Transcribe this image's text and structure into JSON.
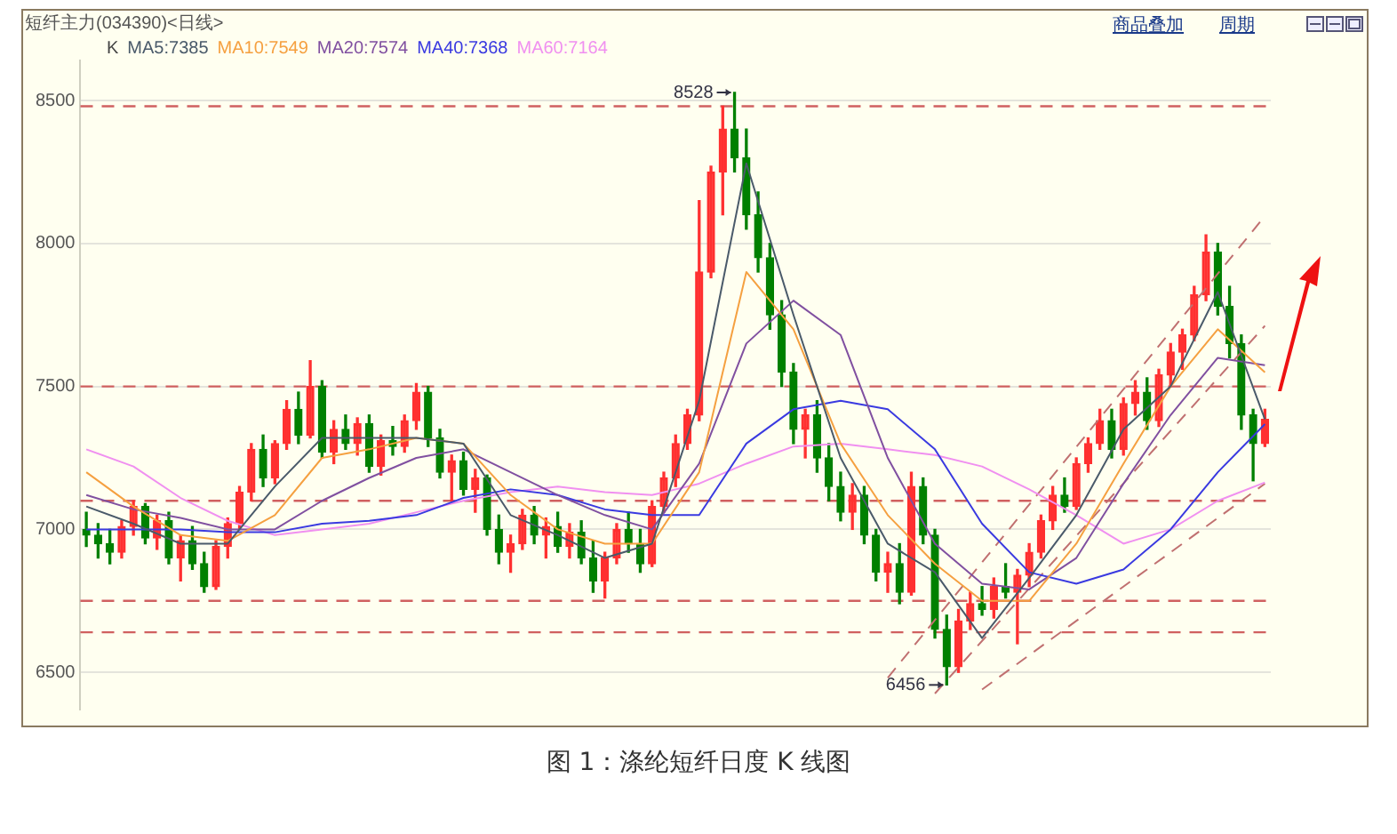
{
  "chart_data": {
    "type": "candlestick",
    "title": "图 1：涤纶短纤日度 K 线图",
    "subtitle": "短纤主力(034390)<日线>",
    "categories": [
      null,
      null,
      null,
      null,
      null,
      null,
      null,
      null,
      null,
      null,
      null,
      null,
      null,
      null,
      null,
      null,
      null,
      null,
      null,
      null,
      null,
      null,
      null,
      null,
      null,
      null,
      null,
      null,
      null,
      null,
      null,
      null,
      null,
      null,
      null,
      null,
      null,
      null,
      null,
      null,
      null,
      null,
      null,
      null,
      null,
      null,
      null,
      null,
      null,
      null,
      null,
      null,
      null,
      null,
      null,
      null,
      null,
      null,
      null,
      null,
      null,
      null,
      null,
      null,
      null,
      null,
      null,
      null,
      null,
      null,
      null,
      null,
      null,
      null,
      null,
      null,
      null,
      null,
      null,
      null,
      null,
      null,
      null,
      null,
      null,
      null,
      null,
      null,
      null,
      null,
      null,
      null,
      null,
      null,
      null,
      null,
      null,
      null,
      null,
      null,
      null
    ],
    "ohlc": [
      [
        7000,
        7060,
        6940,
        6980
      ],
      [
        6980,
        7020,
        6900,
        6950
      ],
      [
        6950,
        7000,
        6880,
        6920
      ],
      [
        6920,
        7030,
        6900,
        7010
      ],
      [
        7010,
        7100,
        6980,
        7080
      ],
      [
        7080,
        7090,
        6950,
        6970
      ],
      [
        6970,
        7050,
        6930,
        7030
      ],
      [
        7030,
        7060,
        6880,
        6900
      ],
      [
        6900,
        6980,
        6820,
        6960
      ],
      [
        6960,
        7010,
        6860,
        6880
      ],
      [
        6880,
        6920,
        6780,
        6800
      ],
      [
        6800,
        6960,
        6790,
        6940
      ],
      [
        6940,
        7040,
        6900,
        7020
      ],
      [
        7020,
        7150,
        7000,
        7130
      ],
      [
        7130,
        7300,
        7100,
        7280
      ],
      [
        7280,
        7330,
        7150,
        7180
      ],
      [
        7180,
        7310,
        7160,
        7300
      ],
      [
        7300,
        7450,
        7280,
        7420
      ],
      [
        7420,
        7480,
        7300,
        7330
      ],
      [
        7330,
        7590,
        7320,
        7500
      ],
      [
        7500,
        7520,
        7250,
        7270
      ],
      [
        7270,
        7380,
        7230,
        7350
      ],
      [
        7350,
        7400,
        7280,
        7300
      ],
      [
        7300,
        7390,
        7260,
        7370
      ],
      [
        7370,
        7400,
        7200,
        7220
      ],
      [
        7220,
        7330,
        7190,
        7310
      ],
      [
        7310,
        7360,
        7260,
        7290
      ],
      [
        7290,
        7400,
        7270,
        7380
      ],
      [
        7380,
        7510,
        7350,
        7480
      ],
      [
        7480,
        7500,
        7290,
        7320
      ],
      [
        7320,
        7350,
        7180,
        7200
      ],
      [
        7200,
        7260,
        7100,
        7240
      ],
      [
        7240,
        7270,
        7120,
        7140
      ],
      [
        7140,
        7210,
        7060,
        7180
      ],
      [
        7180,
        7190,
        6980,
        7000
      ],
      [
        7000,
        7050,
        6880,
        6920
      ],
      [
        6920,
        6980,
        6850,
        6950
      ],
      [
        6950,
        7070,
        6930,
        7050
      ],
      [
        7050,
        7080,
        6950,
        6980
      ],
      [
        6980,
        7040,
        6900,
        7010
      ],
      [
        7010,
        7060,
        6920,
        6940
      ],
      [
        6940,
        7020,
        6900,
        6990
      ],
      [
        6990,
        7030,
        6880,
        6900
      ],
      [
        6900,
        6960,
        6780,
        6820
      ],
      [
        6820,
        6920,
        6760,
        6900
      ],
      [
        6900,
        7020,
        6880,
        7000
      ],
      [
        7000,
        7060,
        6920,
        6950
      ],
      [
        6950,
        7000,
        6850,
        6880
      ],
      [
        6880,
        7100,
        6870,
        7080
      ],
      [
        7080,
        7200,
        7060,
        7180
      ],
      [
        7180,
        7330,
        7150,
        7300
      ],
      [
        7300,
        7420,
        7280,
        7400
      ],
      [
        7400,
        8150,
        7380,
        7900
      ],
      [
        7900,
        8270,
        7880,
        8250
      ],
      [
        8250,
        8480,
        8100,
        8400
      ],
      [
        8400,
        8528,
        8250,
        8300
      ],
      [
        8300,
        8400,
        8050,
        8100
      ],
      [
        8100,
        8180,
        7900,
        7950
      ],
      [
        7950,
        8000,
        7700,
        7750
      ],
      [
        7750,
        7800,
        7500,
        7550
      ],
      [
        7550,
        7580,
        7300,
        7350
      ],
      [
        7350,
        7420,
        7250,
        7400
      ],
      [
        7400,
        7450,
        7200,
        7250
      ],
      [
        7250,
        7300,
        7100,
        7150
      ],
      [
        7150,
        7200,
        7030,
        7060
      ],
      [
        7060,
        7160,
        7000,
        7120
      ],
      [
        7120,
        7150,
        6950,
        6980
      ],
      [
        6980,
        7000,
        6820,
        6850
      ],
      [
        6850,
        6920,
        6780,
        6880
      ],
      [
        6880,
        6950,
        6740,
        6780
      ],
      [
        6780,
        7200,
        6770,
        7150
      ],
      [
        7150,
        7180,
        6950,
        6980
      ],
      [
        6980,
        7000,
        6620,
        6650
      ],
      [
        6650,
        6700,
        6456,
        6520
      ],
      [
        6520,
        6720,
        6500,
        6680
      ],
      [
        6680,
        6780,
        6650,
        6740
      ],
      [
        6740,
        6800,
        6700,
        6720
      ],
      [
        6720,
        6830,
        6690,
        6800
      ],
      [
        6800,
        6880,
        6760,
        6780
      ],
      [
        6780,
        6860,
        6600,
        6840
      ],
      [
        6840,
        6950,
        6800,
        6920
      ],
      [
        6920,
        7050,
        6900,
        7030
      ],
      [
        7030,
        7150,
        7000,
        7120
      ],
      [
        7120,
        7180,
        7060,
        7080
      ],
      [
        7080,
        7250,
        7070,
        7230
      ],
      [
        7230,
        7320,
        7200,
        7300
      ],
      [
        7300,
        7420,
        7280,
        7380
      ],
      [
        7380,
        7420,
        7250,
        7280
      ],
      [
        7280,
        7460,
        7260,
        7440
      ],
      [
        7440,
        7520,
        7400,
        7480
      ],
      [
        7480,
        7530,
        7350,
        7380
      ],
      [
        7380,
        7560,
        7360,
        7540
      ],
      [
        7540,
        7650,
        7500,
        7620
      ],
      [
        7620,
        7700,
        7560,
        7680
      ],
      [
        7680,
        7850,
        7660,
        7820
      ],
      [
        7820,
        8030,
        7800,
        7970
      ],
      [
        7970,
        8000,
        7750,
        7780
      ],
      [
        7780,
        7850,
        7600,
        7650
      ],
      [
        7650,
        7680,
        7350,
        7400
      ],
      [
        7400,
        7420,
        7170,
        7300
      ],
      [
        7300,
        7420,
        7290,
        7385
      ]
    ],
    "colors": [
      "#008000",
      "#008000",
      "#008000",
      "#ff3030",
      "#ff3030",
      "#008000",
      "#ff3030",
      "#008000",
      "#ff3030",
      "#008000",
      "#008000",
      "#ff3030",
      "#ff3030",
      "#ff3030",
      "#ff3030",
      "#008000",
      "#ff3030",
      "#ff3030",
      "#008000",
      "#ff3030",
      "#008000",
      "#ff3030",
      "#008000",
      "#ff3030",
      "#008000",
      "#ff3030",
      "#008000",
      "#ff3030",
      "#ff3030",
      "#008000",
      "#008000",
      "#ff3030",
      "#008000",
      "#ff3030",
      "#008000",
      "#008000",
      "#ff3030",
      "#ff3030",
      "#008000",
      "#ff3030",
      "#008000",
      "#ff3030",
      "#008000",
      "#008000",
      "#ff3030",
      "#ff3030",
      "#008000",
      "#008000",
      "#ff3030",
      "#ff3030",
      "#ff3030",
      "#ff3030",
      "#ff3030",
      "#ff3030",
      "#ff3030",
      "#008000",
      "#008000",
      "#008000",
      "#008000",
      "#008000",
      "#008000",
      "#ff3030",
      "#008000",
      "#008000",
      "#008000",
      "#ff3030",
      "#008000",
      "#008000",
      "#ff3030",
      "#008000",
      "#ff3030",
      "#008000",
      "#008000",
      "#008000",
      "#ff3030",
      "#ff3030",
      "#008000",
      "#ff3030",
      "#008000",
      "#ff3030",
      "#ff3030",
      "#ff3030",
      "#ff3030",
      "#008000",
      "#ff3030",
      "#ff3030",
      "#ff3030",
      "#008000",
      "#ff3030",
      "#ff3030",
      "#008000",
      "#ff3030",
      "#ff3030",
      "#ff3030",
      "#ff3030",
      "#ff3030",
      "#008000",
      "#008000",
      "#008000",
      "#008000",
      "#ff3030"
    ],
    "series": [
      {
        "type": "line",
        "name": "MA5:7385",
        "color": "#4a5a6a",
        "values": [
          7080,
          null,
          null,
          null,
          7020,
          null,
          null,
          null,
          6950,
          null,
          null,
          null,
          6950,
          null,
          null,
          null,
          7150,
          null,
          null,
          null,
          7320,
          null,
          null,
          null,
          7320,
          null,
          null,
          null,
          7320,
          null,
          null,
          null,
          7300,
          null,
          null,
          null,
          7050,
          null,
          null,
          null,
          6980,
          null,
          null,
          null,
          6900,
          null,
          null,
          null,
          6950,
          null,
          null,
          null,
          7450,
          null,
          null,
          null,
          8280,
          null,
          null,
          null,
          7750,
          null,
          null,
          null,
          7250,
          null,
          null,
          null,
          6950,
          null,
          null,
          null,
          6850,
          null,
          null,
          null,
          6620,
          null,
          null,
          null,
          6830,
          null,
          null,
          null,
          7050,
          null,
          null,
          null,
          7350,
          null,
          null,
          null,
          7500,
          null,
          null,
          null,
          7830,
          null,
          null,
          null,
          7385
        ]
      },
      {
        "type": "line",
        "name": "MA10:7549",
        "color": "#f5a040",
        "values": [
          7200,
          null,
          null,
          null,
          7080,
          null,
          null,
          null,
          6980,
          null,
          null,
          null,
          6960,
          null,
          null,
          null,
          7050,
          null,
          null,
          null,
          7250,
          null,
          null,
          null,
          7280,
          null,
          null,
          null,
          7320,
          null,
          null,
          null,
          7300,
          null,
          null,
          null,
          7120,
          null,
          null,
          null,
          7000,
          null,
          null,
          null,
          6950,
          null,
          null,
          null,
          6950,
          null,
          null,
          null,
          7200,
          null,
          null,
          null,
          7900,
          null,
          null,
          null,
          7700,
          null,
          null,
          null,
          7300,
          null,
          null,
          null,
          7050,
          null,
          null,
          null,
          6880,
          null,
          null,
          null,
          6750,
          null,
          null,
          null,
          6750,
          null,
          null,
          null,
          6950,
          null,
          null,
          null,
          7230,
          null,
          null,
          null,
          7500,
          null,
          null,
          null,
          7700,
          null,
          null,
          null,
          7549
        ]
      },
      {
        "type": "line",
        "name": "MA20:7574",
        "color": "#8050a0",
        "values": [
          7120,
          null,
          null,
          null,
          7070,
          null,
          null,
          null,
          7040,
          null,
          null,
          null,
          7000,
          null,
          null,
          null,
          7000,
          null,
          null,
          null,
          7100,
          null,
          null,
          null,
          7180,
          null,
          null,
          null,
          7250,
          null,
          null,
          null,
          7280,
          null,
          null,
          null,
          7200,
          null,
          null,
          null,
          7120,
          null,
          null,
          null,
          7050,
          null,
          null,
          null,
          7000,
          null,
          null,
          null,
          7230,
          null,
          null,
          null,
          7650,
          null,
          null,
          null,
          7800,
          null,
          null,
          null,
          7680,
          null,
          null,
          null,
          7250,
          null,
          null,
          null,
          6950,
          null,
          null,
          null,
          6810,
          null,
          null,
          null,
          6790,
          null,
          null,
          null,
          6900,
          null,
          null,
          null,
          7160,
          null,
          null,
          null,
          7400,
          null,
          null,
          null,
          7600,
          null,
          null,
          null,
          7574
        ]
      },
      {
        "type": "line",
        "name": "MA40:7368",
        "color": "#3a3ae0",
        "values": [
          7000,
          null,
          null,
          null,
          7000,
          null,
          null,
          null,
          7000,
          null,
          null,
          null,
          6990,
          null,
          null,
          null,
          6990,
          null,
          null,
          null,
          7020,
          null,
          null,
          null,
          7030,
          null,
          null,
          null,
          7050,
          null,
          null,
          null,
          7110,
          null,
          null,
          null,
          7140,
          null,
          null,
          null,
          7120,
          null,
          null,
          null,
          7070,
          null,
          null,
          null,
          7050,
          null,
          null,
          null,
          7050,
          null,
          null,
          null,
          7300,
          null,
          null,
          null,
          7420,
          null,
          null,
          null,
          7450,
          null,
          null,
          null,
          7420,
          null,
          null,
          null,
          7280,
          null,
          null,
          null,
          7020,
          null,
          null,
          null,
          6850,
          null,
          null,
          null,
          6810,
          null,
          null,
          null,
          6860,
          null,
          null,
          null,
          7000,
          null,
          null,
          null,
          7200,
          null,
          null,
          null,
          7368
        ]
      },
      {
        "type": "line",
        "name": "MA60:7164",
        "color": "#f090f0",
        "values": [
          7280,
          null,
          null,
          null,
          7220,
          null,
          null,
          null,
          7110,
          null,
          null,
          null,
          7030,
          null,
          null,
          null,
          6980,
          null,
          null,
          null,
          7000,
          null,
          null,
          null,
          7020,
          null,
          null,
          null,
          7060,
          null,
          null,
          null,
          7100,
          null,
          null,
          null,
          7130,
          null,
          null,
          null,
          7150,
          null,
          null,
          null,
          7130,
          null,
          null,
          null,
          7120,
          null,
          null,
          null,
          7160,
          null,
          null,
          null,
          7230,
          null,
          null,
          null,
          7290,
          null,
          null,
          null,
          7300,
          null,
          null,
          null,
          7280,
          null,
          null,
          null,
          7260,
          null,
          null,
          null,
          7220,
          null,
          null,
          null,
          7140,
          null,
          null,
          null,
          7050,
          null,
          null,
          null,
          6950,
          null,
          null,
          null,
          7000,
          null,
          null,
          null,
          7100,
          null,
          null,
          null,
          7164
        ]
      },
      {
        "type": "line",
        "color": "#c07070",
        "line_style": "dashed",
        "values": [
          null,
          null,
          null,
          null,
          null,
          null,
          null,
          null,
          null,
          null,
          null,
          null,
          null,
          null,
          null,
          null,
          null,
          null,
          null,
          null,
          null,
          null,
          null,
          null,
          null,
          null,
          null,
          null,
          null,
          null,
          null,
          null,
          null,
          null,
          null,
          null,
          null,
          null,
          null,
          null,
          null,
          null,
          null,
          null,
          null,
          null,
          null,
          null,
          null,
          null,
          null,
          null,
          null,
          null,
          null,
          null,
          null,
          null,
          null,
          null,
          null,
          null,
          null,
          null,
          null,
          null,
          null,
          null,
          6481,
          null,
          null,
          null,
          null,
          null,
          null,
          null,
          null,
          null,
          null,
          null,
          null,
          null,
          null,
          null,
          null,
          null,
          null,
          null,
          null,
          null,
          null,
          null,
          null,
          null,
          null,
          null,
          null,
          null,
          null,
          null,
          8096
        ]
      },
      {
        "type": "line",
        "color": "#c07070",
        "line_style": "dashed",
        "values": [
          null,
          null,
          null,
          null,
          null,
          null,
          null,
          null,
          null,
          null,
          null,
          null,
          null,
          null,
          null,
          null,
          null,
          null,
          null,
          null,
          null,
          null,
          null,
          null,
          null,
          null,
          null,
          null,
          null,
          null,
          null,
          null,
          null,
          null,
          null,
          null,
          null,
          null,
          null,
          null,
          null,
          null,
          null,
          null,
          null,
          null,
          null,
          null,
          null,
          null,
          null,
          null,
          null,
          null,
          null,
          null,
          null,
          null,
          null,
          null,
          null,
          null,
          null,
          null,
          null,
          null,
          null,
          null,
          null,
          null,
          null,
          null,
          6426,
          null,
          null,
          null,
          null,
          null,
          null,
          null,
          null,
          null,
          null,
          null,
          null,
          null,
          null,
          null,
          null,
          null,
          null,
          null,
          null,
          null,
          null,
          null,
          null,
          null,
          null,
          null,
          7712
        ]
      },
      {
        "type": "line",
        "color": "#c07070",
        "line_style": "dashed",
        "values": [
          null,
          null,
          null,
          null,
          null,
          null,
          null,
          null,
          null,
          null,
          null,
          null,
          null,
          null,
          null,
          null,
          null,
          null,
          null,
          null,
          null,
          null,
          null,
          null,
          null,
          null,
          null,
          null,
          null,
          null,
          null,
          null,
          null,
          null,
          null,
          null,
          null,
          null,
          null,
          null,
          null,
          null,
          null,
          null,
          null,
          null,
          null,
          null,
          null,
          null,
          null,
          null,
          null,
          null,
          null,
          null,
          null,
          null,
          null,
          null,
          null,
          null,
          null,
          null,
          null,
          null,
          null,
          null,
          null,
          null,
          null,
          null,
          null,
          null,
          null,
          null,
          6440,
          null,
          null,
          null,
          null,
          null,
          null,
          null,
          null,
          null,
          null,
          null,
          null,
          null,
          null,
          null,
          null,
          null,
          null,
          null,
          null,
          null,
          null,
          null,
          7160
        ]
      }
    ],
    "ylim": [
      6370,
      8640
    ],
    "yticks": [
      6500,
      7000,
      7500,
      8000,
      8500
    ],
    "tick_labels": "y",
    "grid": "y",
    "marker": "none",
    "ref_lines": [
      {
        "axis": "y",
        "value": 8480,
        "color": "#d06060",
        "line_style": "dashed"
      },
      {
        "axis": "y",
        "value": 7500,
        "color": "#d06060",
        "line_style": "dashed"
      },
      {
        "axis": "y",
        "value": 7100,
        "color": "#d06060",
        "line_style": "dashed"
      },
      {
        "axis": "y",
        "value": 6750,
        "color": "#d06060",
        "line_style": "dashed"
      },
      {
        "axis": "y",
        "value": 6640,
        "color": "#d06060",
        "line_style": "dashed"
      }
    ],
    "annotations": [
      "K",
      "商品叠加",
      "周期",
      "8528",
      "6456"
    ]
  }
}
